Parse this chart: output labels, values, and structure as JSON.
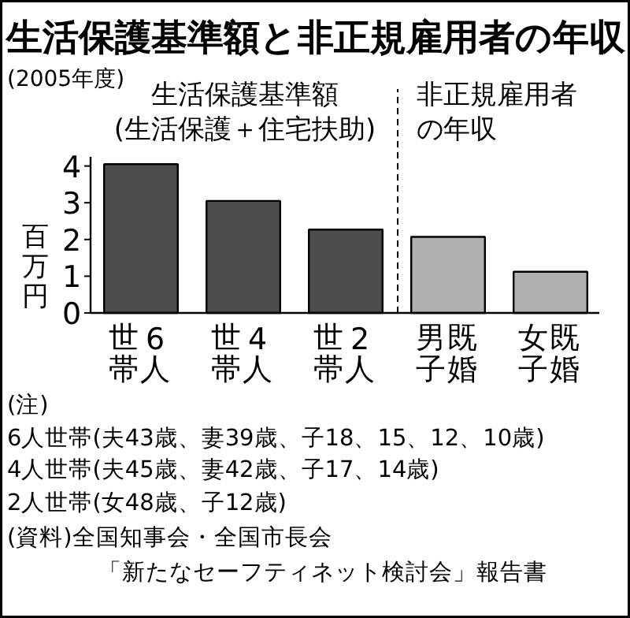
{
  "chart_data": {
    "type": "bar",
    "title": "生活保護基準額と非正規雇用者の年収",
    "subtitle": "(2005年度)",
    "ylabel": "百万円",
    "categories": [
      "6人世帯",
      "4人世帯",
      "2人世帯",
      "既婚男子",
      "既婚女子"
    ],
    "values": [
      4.05,
      3.05,
      2.27,
      2.07,
      1.12
    ],
    "colors": [
      "#4d4d4d",
      "#4d4d4d",
      "#4d4d4d",
      "#b0b0b0",
      "#b0b0b0"
    ],
    "ylim": [
      0,
      4.25
    ],
    "yticks": [
      0,
      1,
      2,
      3,
      4
    ],
    "grid": false,
    "annotations": [
      "生活保護基準額",
      "(生活保護＋住宅扶助)",
      "非正規雇用者",
      "の年収",
      "(注)",
      "6人世帯(夫43歳、妻39歳、子18、15、12、10歳)",
      "4人世帯(夫45歳、妻42歳、子17、14歳)",
      "2人世帯(女48歳、子12歳)",
      "(資料)全国知事会・全国市長会",
      "「新たなセーフティネット検討会」報告書"
    ]
  }
}
